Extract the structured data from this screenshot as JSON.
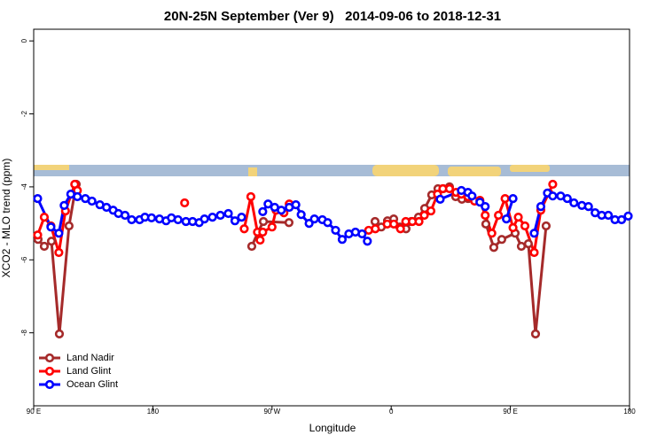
{
  "chart_data": {
    "type": "line",
    "title": "20N-25N September (Ver 9)   2014-09-06 to 2018-12-31",
    "xlabel": "Longitude",
    "ylabel": "XCO2 - MLO trend (ppm)",
    "xlim": [
      90,
      540
    ],
    "ylim": [
      -10,
      0.32
    ],
    "xticks": [
      {
        "value": 90,
        "label": "90 E"
      },
      180,
      {
        "value": 270,
        "label": "90 W"
      },
      {
        "value": 360,
        "label": "0"
      },
      {
        "value": 450,
        "label": "90 E"
      },
      {
        "value": 540,
        "label": "180"
      }
    ],
    "yticks": [
      0,
      -2,
      -4,
      -6,
      -8
    ],
    "legend": "bottomleft",
    "series": [
      {
        "name": "Land Nadir",
        "color": "#a52a2a",
        "x": [
          93.3,
          98.0,
          103.4,
          109.4,
          116.7,
          122.1,
          null,
          254.7,
          259.4,
          263.5,
          282.8,
          null,
          347.8,
          352.5,
          357.2,
          361.9,
          366.5,
          371.2,
          375.2,
          380.6,
          385.3,
          390.6,
          395.3,
          399.3,
          404.0,
          408.7,
          413.4,
          418.1,
          null,
          431.5,
          437.5,
          443.5,
          453.6,
          458.3,
          463.6,
          469.0,
          477.0
        ],
        "values": [
          -5.44,
          -5.63,
          -5.49,
          -8.03,
          -5.07,
          -3.93,
          null,
          -5.63,
          -5.24,
          -4.95,
          -4.98,
          null,
          -4.95,
          -5.1,
          -4.93,
          -4.88,
          -5.1,
          -5.15,
          -4.95,
          -4.83,
          -4.59,
          -4.22,
          -4.05,
          -4.05,
          -4.0,
          -4.27,
          -4.34,
          -4.32,
          null,
          -5.02,
          -5.66,
          -5.44,
          -5.27,
          -5.63,
          -5.56,
          -8.03,
          -5.07
        ]
      },
      {
        "name": "Land Glint",
        "color": "#ff0000",
        "x": [
          93,
          98,
          103,
          109,
          114,
          121,
          123,
          null,
          204,
          null,
          249,
          254,
          259,
          261,
          263,
          270,
          273,
          279,
          283,
          null,
          343,
          348,
          357,
          362,
          367,
          371,
          376,
          381,
          385,
          390,
          395,
          399,
          404,
          409,
          413,
          418,
          423,
          427,
          431,
          436,
          441,
          446,
          452,
          456,
          461,
          468,
          473,
          479,
          482
        ],
        "values": [
          -5.32,
          -4.83,
          -5.07,
          -5.8,
          -4.66,
          -3.93,
          -4.1,
          null,
          -4.44,
          null,
          -5.15,
          -4.27,
          -5.24,
          -5.46,
          -5.24,
          -5.1,
          -4.64,
          -4.71,
          -4.47,
          null,
          -5.19,
          -5.15,
          -5.02,
          -5.02,
          -5.15,
          -4.95,
          -4.95,
          -4.95,
          -4.78,
          -4.66,
          -4.2,
          -4.05,
          -4.05,
          -4.15,
          -4.2,
          -4.27,
          -4.39,
          -4.37,
          -4.78,
          -5.27,
          -4.78,
          -4.32,
          -5.12,
          -4.83,
          -5.07,
          -5.8,
          -4.64,
          -4.17,
          -3.93
        ]
      },
      {
        "name": "Ocean Glint",
        "color": "#0000ff",
        "x": [
          93,
          103,
          109,
          113,
          118,
          123,
          129,
          134,
          140,
          145,
          150,
          154,
          159,
          164,
          170,
          174,
          179,
          185,
          190,
          194,
          199,
          205,
          210,
          215,
          219,
          225,
          231,
          237,
          242,
          247,
          null,
          263,
          267,
          272,
          277,
          283,
          288,
          292,
          298,
          302,
          308,
          312,
          318,
          323,
          328,
          333,
          338,
          342,
          null,
          397,
          413,
          418,
          421,
          427,
          431,
          null,
          447,
          452,
          null,
          468,
          473,
          478,
          482,
          488,
          493,
          498,
          504,
          509,
          514,
          519,
          524,
          529,
          534,
          539
        ],
        "values": [
          -4.32,
          -5.1,
          -5.27,
          -4.51,
          -4.2,
          -4.27,
          -4.32,
          -4.39,
          -4.49,
          -4.56,
          -4.64,
          -4.73,
          -4.78,
          -4.9,
          -4.9,
          -4.83,
          -4.85,
          -4.88,
          -4.93,
          -4.85,
          -4.9,
          -4.95,
          -4.95,
          -4.98,
          -4.88,
          -4.83,
          -4.78,
          -4.73,
          -4.93,
          -4.83,
          null,
          -4.68,
          -4.47,
          -4.56,
          -4.64,
          -4.56,
          -4.49,
          -4.76,
          -5.0,
          -4.88,
          -4.9,
          -4.98,
          -5.19,
          -5.44,
          -5.29,
          -5.24,
          -5.29,
          -5.49,
          null,
          -4.34,
          -4.1,
          -4.15,
          -4.25,
          -4.42,
          -4.54,
          null,
          -4.88,
          -4.32,
          null,
          -5.27,
          -4.54,
          -4.17,
          -4.25,
          -4.25,
          -4.32,
          -4.44,
          -4.51,
          -4.54,
          -4.71,
          -4.78,
          -4.78,
          -4.9,
          -4.9,
          -4.8
        ]
      }
    ]
  }
}
